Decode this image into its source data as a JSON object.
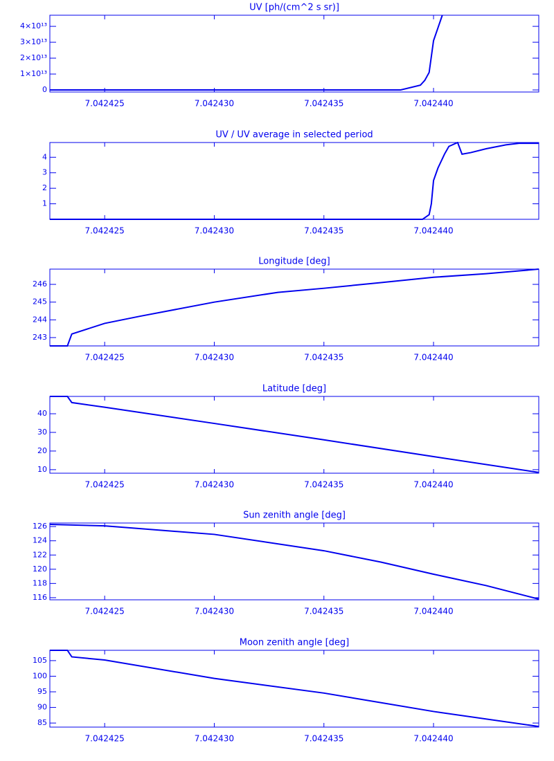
{
  "chart_data": [
    {
      "type": "line",
      "title": "UV [ph/(cm^2 s sr)]",
      "color": "#0000ee",
      "x": [
        7.0424225,
        7.0424385,
        7.0424394,
        7.0424396,
        7.0424398,
        7.0424399,
        7.04244,
        7.0424402,
        7.0424404
      ],
      "values": [
        0,
        0,
        3000000000000,
        6000000000000,
        11000000000000,
        21000000000000,
        31000000000000,
        39000000000000,
        47000000000000
      ],
      "xlim": [
        7.0424225,
        7.0424448
      ],
      "ylim": [
        -1300000000000,
        47000000000000
      ],
      "xticks": [
        7.042425,
        {
          "value": 7.04243,
          "label": "7.042430"
        },
        7.042435,
        {
          "value": 7.04244,
          "label": "7.042440"
        }
      ],
      "yticks": [
        0,
        {
          "value": 10000000000000,
          "label": "1×10¹³"
        },
        {
          "value": 20000000000000,
          "label": "2×10¹³"
        },
        {
          "value": 30000000000000,
          "label": "3×10¹³"
        },
        {
          "value": 40000000000000,
          "label": "4×10¹³"
        }
      ]
    },
    {
      "type": "line",
      "title": "UV / UV average in selected period",
      "color": "#0000ee",
      "x": [
        7.0424225,
        7.0424395,
        7.0424398,
        7.0424399,
        7.04244,
        7.0424402,
        7.0424405,
        7.0424407,
        7.0424411,
        7.0424413,
        7.0424417,
        7.0424424,
        7.0424433,
        7.0424439,
        7.0424448
      ],
      "values": [
        0,
        0,
        0.3,
        1,
        2.5,
        3.3,
        4.2,
        4.7,
        4.95,
        4.2,
        4.3,
        4.55,
        4.8,
        4.9,
        4.9
      ],
      "xlim": [
        7.0424225,
        7.0424448
      ],
      "ylim": [
        0,
        4.95
      ],
      "xticks": [
        7.042425,
        {
          "value": 7.04243,
          "label": "7.042430"
        },
        7.042435,
        {
          "value": 7.04244,
          "label": "7.042440"
        }
      ],
      "yticks": [
        1,
        2,
        3,
        4
      ]
    },
    {
      "type": "line",
      "title": "Longitude [deg]",
      "color": "#0000ee",
      "x": [
        7.0424225,
        7.0424233,
        7.0424235,
        7.042425,
        7.0424266,
        7.04243,
        7.0424329,
        7.042435,
        7.0424376,
        7.04244,
        7.0424424,
        7.0424448
      ],
      "values": [
        242.53,
        242.53,
        243.2,
        243.8,
        244.2,
        245.0,
        245.55,
        245.78,
        246.1,
        246.4,
        246.6,
        246.86
      ],
      "xlim": [
        7.0424225,
        7.0424448
      ],
      "ylim": [
        242.53,
        246.86
      ],
      "xticks": [
        7.042425,
        {
          "value": 7.04243,
          "label": "7.042430"
        },
        7.042435,
        {
          "value": 7.04244,
          "label": "7.042440"
        }
      ],
      "yticks": [
        243,
        244,
        245,
        246
      ]
    },
    {
      "type": "line",
      "title": "Latitude [deg]",
      "color": "#0000ee",
      "x": [
        7.0424225,
        7.0424233,
        7.0424235,
        7.042425,
        7.04243,
        7.042435,
        7.04244,
        7.0424448
      ],
      "values": [
        49.3,
        49.3,
        46,
        43.5,
        34.8,
        26,
        17,
        8.5
      ],
      "xlim": [
        7.0424225,
        7.0424448
      ],
      "ylim": [
        8.1,
        49.3
      ],
      "xticks": [
        7.042425,
        {
          "value": 7.04243,
          "label": "7.042430"
        },
        7.042435,
        {
          "value": 7.04244,
          "label": "7.042440"
        }
      ],
      "yticks": [
        10,
        20,
        30,
        40
      ]
    },
    {
      "type": "line",
      "title": "Sun zenith angle [deg]",
      "color": "#0000ee",
      "x": [
        7.0424225,
        7.042425,
        7.04243,
        7.042435,
        7.0424376,
        7.04244,
        7.0424424,
        7.0424448
      ],
      "values": [
        126.3,
        126.1,
        124.9,
        122.6,
        121.0,
        119.3,
        117.7,
        115.8
      ],
      "xlim": [
        7.0424225,
        7.0424448
      ],
      "ylim": [
        115.7,
        126.5
      ],
      "xticks": [
        7.042425,
        {
          "value": 7.04243,
          "label": "7.042430"
        },
        7.042435,
        {
          "value": 7.04244,
          "label": "7.042440"
        }
      ],
      "yticks": [
        116,
        118,
        120,
        122,
        124,
        126
      ]
    },
    {
      "type": "line",
      "title": "Moon zenith angle [deg]",
      "color": "#0000ee",
      "x": [
        7.0424225,
        7.0424233,
        7.0424235,
        7.042425,
        7.04243,
        7.042435,
        7.04244,
        7.0424448
      ],
      "values": [
        108.3,
        108.3,
        106.2,
        105.2,
        99.3,
        94.6,
        88.7,
        83.9
      ],
      "xlim": [
        7.0424225,
        7.0424448
      ],
      "ylim": [
        83.7,
        108.3
      ],
      "xticks": [
        7.042425,
        {
          "value": 7.04243,
          "label": "7.042430"
        },
        7.042435,
        {
          "value": 7.04244,
          "label": "7.042440"
        }
      ],
      "yticks": [
        85,
        90,
        95,
        100,
        105
      ]
    }
  ]
}
